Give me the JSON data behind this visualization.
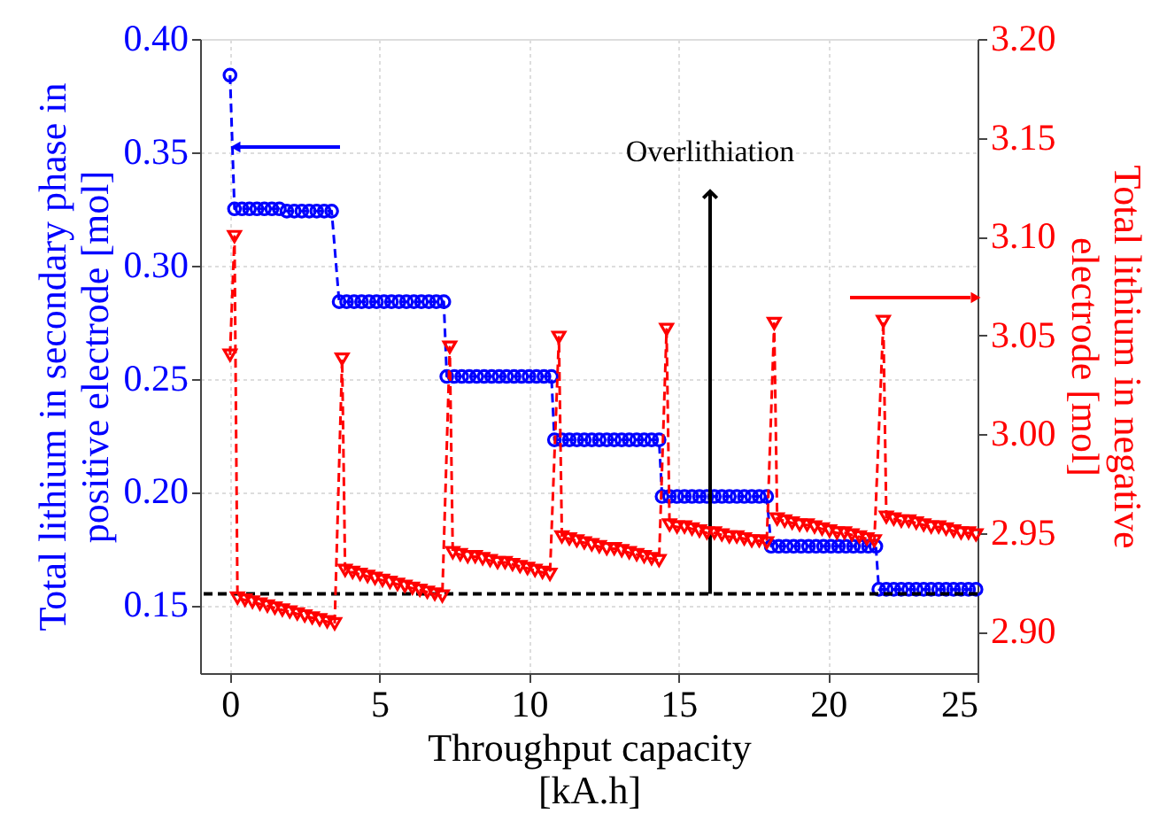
{
  "chart_data": {
    "type": "line",
    "xlabel": "Throughput capacity\n[kA.h]",
    "ylabel": "Total lithium in secondary phase in\npositive electrode [mol]",
    "y2label": "Total lithium in negative\nelectrode [mol]",
    "xlim": [
      -1,
      25
    ],
    "xticks": [
      0,
      5,
      10,
      15,
      20,
      25
    ],
    "ylim": [
      0.12,
      0.4
    ],
    "yticks": [
      {
        "value": 0.15,
        "label": "0.15"
      },
      {
        "value": 0.2,
        "label": "0.20"
      },
      {
        "value": 0.25,
        "label": "0.25"
      },
      {
        "value": 0.3,
        "label": "0.30"
      },
      {
        "value": 0.35,
        "label": "0.35"
      },
      {
        "value": 0.4,
        "label": "0.40"
      }
    ],
    "y2lim": [
      2.879,
      3.2
    ],
    "y2ticks": [
      {
        "value": 2.9,
        "label": "2.90"
      },
      {
        "value": 2.95,
        "label": "2.95"
      },
      {
        "value": 3.0,
        "label": "3.00"
      },
      {
        "value": 3.05,
        "label": "3.05"
      },
      {
        "value": 3.1,
        "label": "3.10"
      },
      {
        "value": 3.15,
        "label": "3.15"
      },
      {
        "value": 3.2,
        "label": "3.20"
      }
    ],
    "grid": true,
    "series": [
      {
        "color": "#0000ff",
        "marker": "circle",
        "line_style": "dashed",
        "axis": "y",
        "x": [
          0,
          0.15,
          0.4,
          0.65,
          0.9,
          1.15,
          1.4,
          1.65,
          1.9,
          2.15,
          2.4,
          2.65,
          2.9,
          3.15,
          3.4,
          3.65,
          3.9,
          4.15,
          4.4,
          4.65,
          4.9,
          5.15,
          5.4,
          5.65,
          5.9,
          6.15,
          6.4,
          6.65,
          6.9,
          7.15,
          7.25,
          7.5,
          7.75,
          8.0,
          8.25,
          8.5,
          8.75,
          9.0,
          9.25,
          9.5,
          9.75,
          10.0,
          10.25,
          10.5,
          10.75,
          10.85,
          11.1,
          11.35,
          11.6,
          11.85,
          12.1,
          12.35,
          12.6,
          12.85,
          13.1,
          13.35,
          13.6,
          13.85,
          14.1,
          14.35,
          14.45,
          14.7,
          14.95,
          15.2,
          15.45,
          15.7,
          15.95,
          16.2,
          16.45,
          16.7,
          16.95,
          17.2,
          17.45,
          17.7,
          17.95,
          18.1,
          18.35,
          18.6,
          18.85,
          19.1,
          19.35,
          19.6,
          19.85,
          20.1,
          20.35,
          20.6,
          20.85,
          21.1,
          21.35,
          21.6,
          21.7,
          21.95,
          22.2,
          22.45,
          22.7,
          22.95,
          23.2,
          23.45,
          23.7,
          23.95,
          24.2,
          24.45,
          24.7,
          24.95
        ],
        "values": [
          0.384,
          0.325,
          0.325,
          0.325,
          0.325,
          0.325,
          0.325,
          0.325,
          0.324,
          0.324,
          0.324,
          0.324,
          0.324,
          0.324,
          0.324,
          0.284,
          0.284,
          0.284,
          0.284,
          0.284,
          0.284,
          0.284,
          0.284,
          0.284,
          0.284,
          0.284,
          0.284,
          0.284,
          0.284,
          0.284,
          0.251,
          0.251,
          0.251,
          0.251,
          0.251,
          0.251,
          0.251,
          0.251,
          0.251,
          0.251,
          0.251,
          0.251,
          0.251,
          0.251,
          0.251,
          0.223,
          0.223,
          0.223,
          0.223,
          0.223,
          0.223,
          0.223,
          0.223,
          0.223,
          0.223,
          0.223,
          0.223,
          0.223,
          0.223,
          0.223,
          0.198,
          0.198,
          0.198,
          0.198,
          0.198,
          0.198,
          0.198,
          0.198,
          0.198,
          0.198,
          0.198,
          0.198,
          0.198,
          0.198,
          0.198,
          0.176,
          0.176,
          0.176,
          0.176,
          0.176,
          0.176,
          0.176,
          0.176,
          0.176,
          0.176,
          0.176,
          0.176,
          0.176,
          0.176,
          0.176,
          0.157,
          0.157,
          0.157,
          0.157,
          0.157,
          0.157,
          0.157,
          0.157,
          0.157,
          0.157,
          0.157,
          0.157,
          0.157,
          0.157
        ]
      },
      {
        "color": "#ff0000",
        "marker": "triangle",
        "line_style": "dashed",
        "axis": "y2",
        "x": [
          0,
          0.15,
          0.25,
          0.5,
          0.75,
          1.0,
          1.25,
          1.5,
          1.75,
          2.0,
          2.25,
          2.5,
          2.75,
          3.0,
          3.25,
          3.5,
          3.75,
          3.85,
          4.1,
          4.35,
          4.6,
          4.85,
          5.1,
          5.35,
          5.6,
          5.85,
          6.1,
          6.35,
          6.6,
          6.85,
          7.1,
          7.35,
          7.45,
          7.7,
          7.95,
          8.2,
          8.45,
          8.7,
          8.95,
          9.2,
          9.45,
          9.7,
          9.95,
          10.2,
          10.45,
          10.7,
          11.0,
          11.1,
          11.35,
          11.6,
          11.85,
          12.1,
          12.35,
          12.6,
          12.85,
          13.1,
          13.35,
          13.6,
          13.85,
          14.1,
          14.35,
          14.6,
          14.7,
          14.95,
          15.2,
          15.45,
          15.7,
          15.95,
          16.2,
          16.45,
          16.7,
          16.95,
          17.2,
          17.45,
          17.7,
          17.95,
          18.2,
          18.3,
          18.55,
          18.8,
          19.05,
          19.3,
          19.55,
          19.8,
          20.05,
          20.3,
          20.55,
          20.8,
          21.05,
          21.3,
          21.55,
          21.85,
          21.95,
          22.2,
          22.45,
          22.7,
          22.95,
          23.2,
          23.45,
          23.7,
          23.95,
          24.2,
          24.45,
          24.7,
          24.95
        ],
        "values": [
          3.04,
          3.1,
          2.917,
          2.916,
          2.915,
          2.914,
          2.913,
          2.912,
          2.911,
          2.91,
          2.909,
          2.908,
          2.907,
          2.906,
          2.905,
          2.904,
          3.038,
          2.931,
          2.93,
          2.929,
          2.928,
          2.927,
          2.926,
          2.925,
          2.924,
          2.923,
          2.922,
          2.921,
          2.92,
          2.919,
          2.918,
          3.044,
          2.94,
          2.939,
          2.938,
          2.938,
          2.937,
          2.936,
          2.935,
          2.935,
          2.934,
          2.933,
          2.932,
          2.931,
          2.93,
          2.929,
          3.049,
          2.948,
          2.947,
          2.946,
          2.945,
          2.944,
          2.943,
          2.942,
          2.942,
          2.941,
          2.94,
          2.939,
          2.938,
          2.937,
          2.936,
          3.053,
          2.954,
          2.953,
          2.953,
          2.952,
          2.951,
          2.95,
          2.95,
          2.949,
          2.948,
          2.948,
          2.947,
          2.946,
          2.946,
          2.945,
          3.056,
          2.957,
          2.956,
          2.955,
          2.954,
          2.954,
          2.953,
          2.952,
          2.951,
          2.95,
          2.95,
          2.949,
          2.948,
          2.947,
          2.946,
          3.057,
          2.958,
          2.957,
          2.956,
          2.956,
          2.955,
          2.954,
          2.953,
          2.953,
          2.952,
          2.951,
          2.95,
          2.95,
          2.949
        ]
      }
    ],
    "ref_lines": [
      {
        "axis": "y",
        "value": 0.155,
        "color": "#000000",
        "line_style": "dashed"
      }
    ],
    "annotations": [
      "Overlithiation"
    ]
  }
}
